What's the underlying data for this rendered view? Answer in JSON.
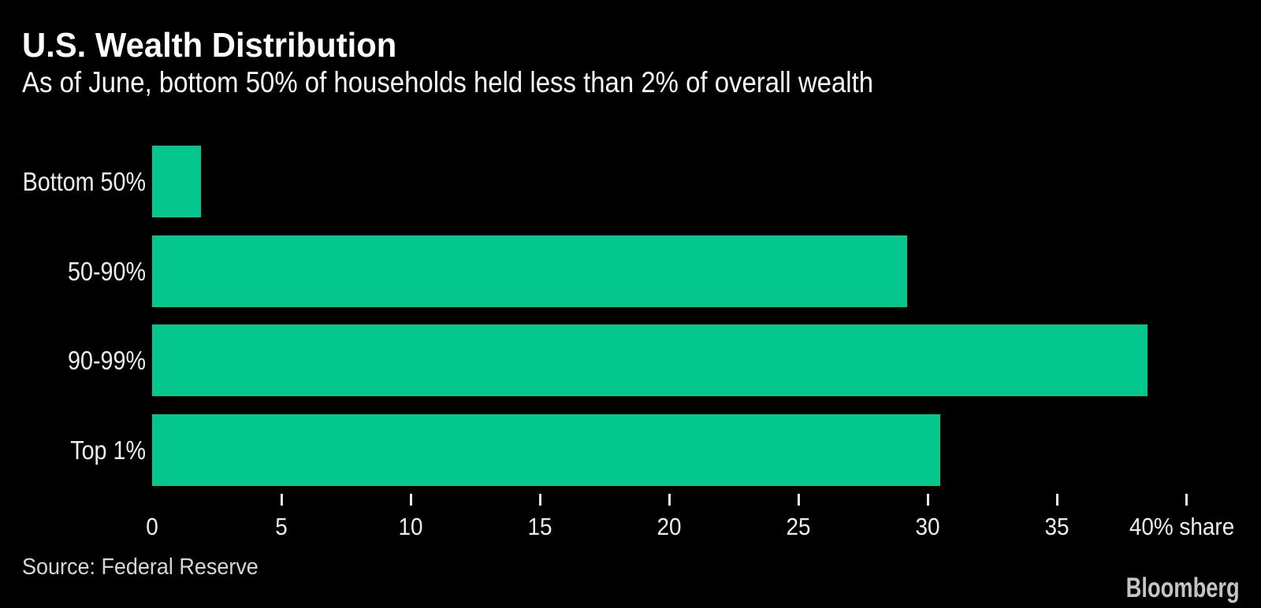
{
  "header": {
    "title": "U.S. Wealth Distribution",
    "subtitle": "As of June, bottom 50% of households held less than 2% of overall wealth"
  },
  "chart_data": {
    "type": "bar",
    "orientation": "horizontal",
    "title": "U.S. Wealth Distribution",
    "subtitle": "As of June, bottom 50% of households held less than 2% of overall wealth",
    "categories": [
      "Bottom 50%",
      "50-90%",
      "90-99%",
      "Top 1%"
    ],
    "values": [
      1.9,
      29.2,
      38.5,
      30.5
    ],
    "xlabel": "% share",
    "xlim": [
      0,
      40
    ],
    "xticks": [
      0,
      5,
      10,
      15,
      20,
      25,
      30,
      35,
      40
    ],
    "xtick_labels": [
      "0",
      "5",
      "10",
      "15",
      "20",
      "25",
      "30",
      "35",
      "40% share"
    ],
    "grid": false,
    "legend": null,
    "bar_color": "#04c78e",
    "background": "#000000"
  },
  "footer": {
    "source": "Source: Federal Reserve",
    "brand": "Bloomberg"
  }
}
